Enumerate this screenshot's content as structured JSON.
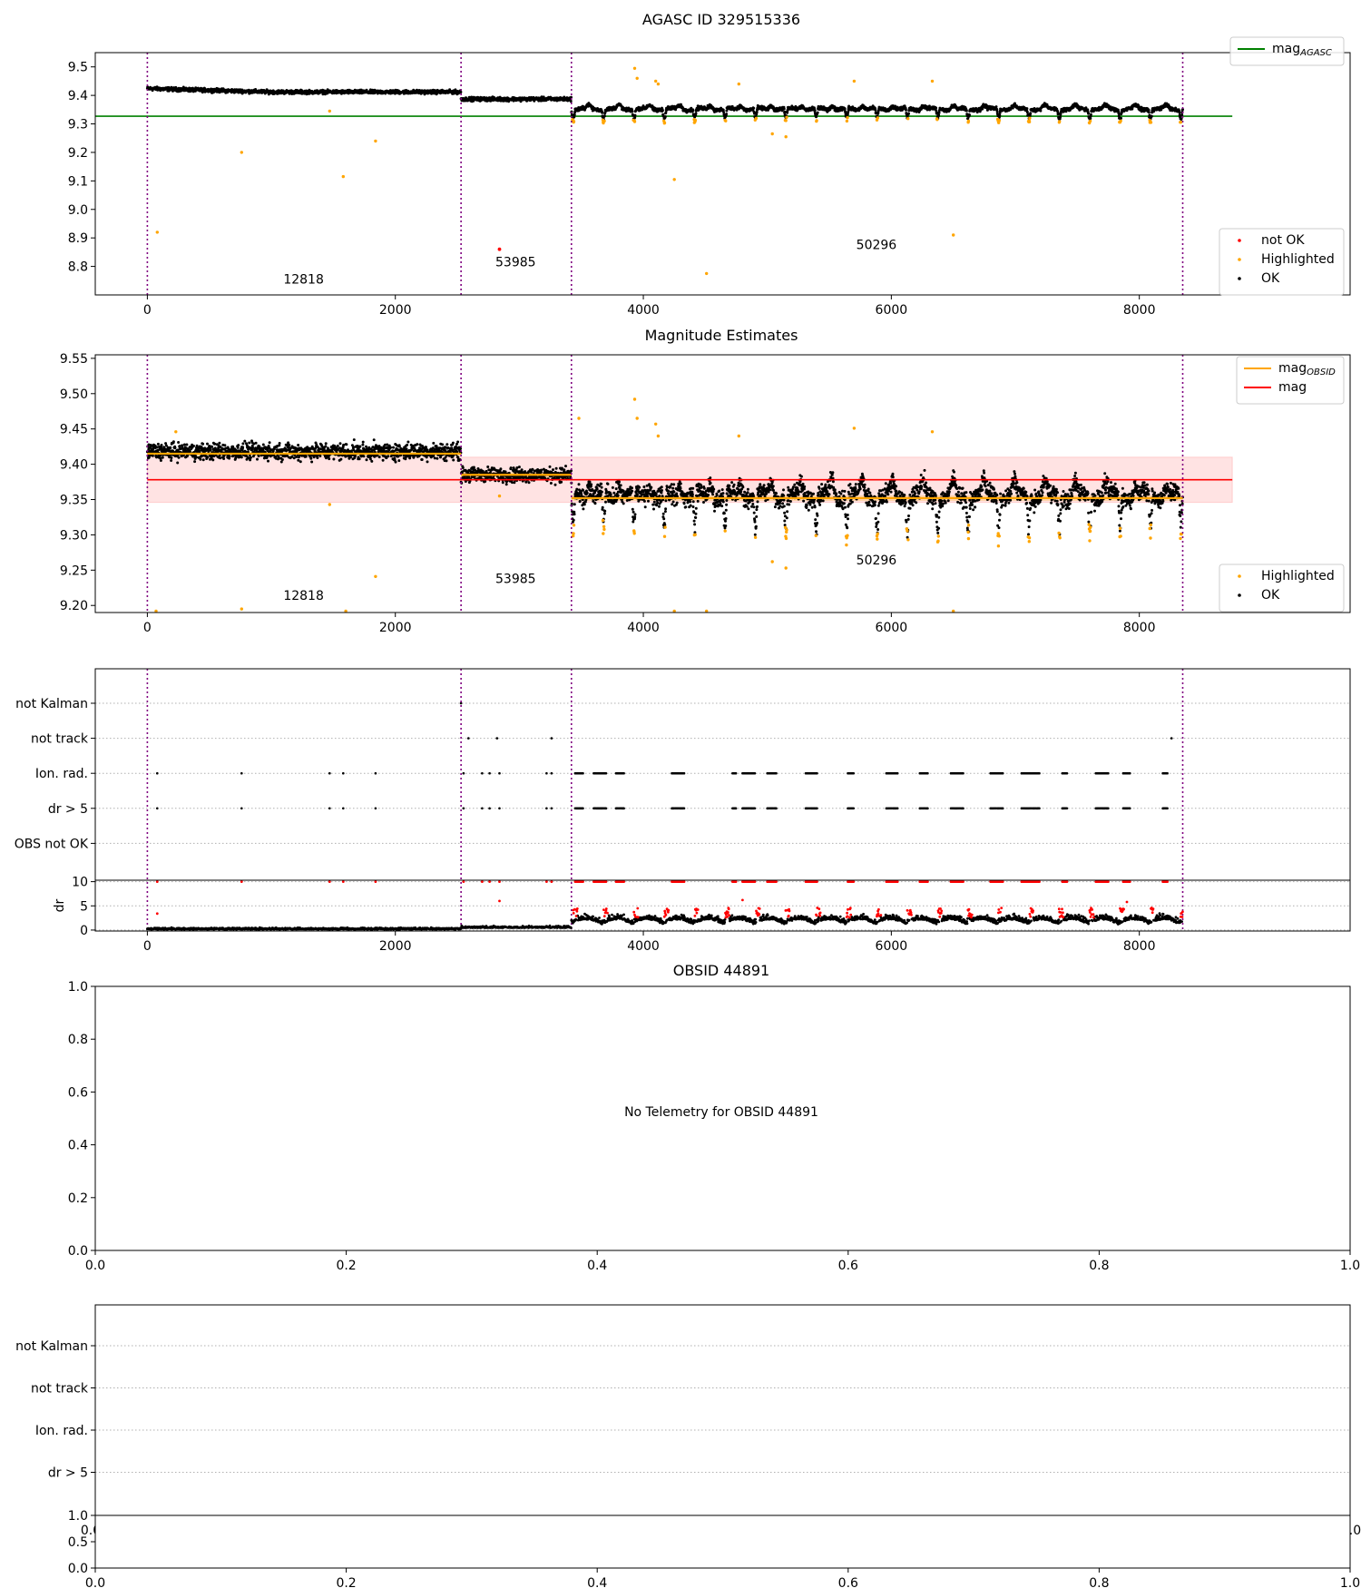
{
  "chart_data": [
    {
      "type": "scatter",
      "title": "AGASC ID 329515336",
      "xlim": [
        -420,
        9700
      ],
      "ylim": [
        8.7,
        9.55
      ],
      "xticks": [
        0,
        2000,
        4000,
        6000,
        8000
      ],
      "yticks": [
        8.8,
        8.9,
        9.0,
        9.1,
        9.2,
        9.3,
        9.4,
        9.5
      ],
      "vlines": [
        0,
        2530,
        3420,
        8350
      ],
      "segments": [
        {
          "obsid": "12818",
          "x_start": 0,
          "x_end": 2530,
          "label_pos": [
            1260,
            8.74
          ]
        },
        {
          "obsid": "53985",
          "x_start": 2530,
          "x_end": 3420,
          "label_pos": [
            2970,
            8.8
          ]
        },
        {
          "obsid": "50296",
          "x_start": 3420,
          "x_end": 8350,
          "label_pos": [
            5880,
            8.86
          ]
        }
      ],
      "reference_lines": [
        {
          "name": "mag_AGASC",
          "color": "#008000",
          "y": 9.327,
          "x_range": [
            -420,
            8750
          ]
        }
      ],
      "levels": [
        9.424,
        9.412,
        9.387,
        9.352
      ],
      "highlighted_points": [
        [
          80,
          8.92
        ],
        [
          760,
          9.2
        ],
        [
          1580,
          9.115
        ],
        [
          1840,
          9.24
        ],
        [
          1470,
          9.345
        ],
        [
          4250,
          9.105
        ],
        [
          4510,
          8.775
        ],
        [
          6500,
          8.91
        ],
        [
          3930,
          9.495
        ],
        [
          3950,
          9.46
        ],
        [
          4100,
          9.45
        ],
        [
          4120,
          9.44
        ],
        [
          4770,
          9.44
        ],
        [
          5040,
          9.265
        ],
        [
          5150,
          9.255
        ],
        [
          5700,
          9.45
        ],
        [
          6330,
          9.45
        ]
      ],
      "not_ok_points": [
        [
          2840,
          8.86
        ]
      ],
      "legends": [
        {
          "position": "upper right",
          "entries": [
            {
              "label": "mag",
              "sub": "AGASC",
              "color": "#008000",
              "marker": "line"
            }
          ]
        },
        {
          "position": "lower right",
          "entries": [
            {
              "label": "not OK",
              "color": "#ff0000",
              "marker": "dot"
            },
            {
              "label": "Highlighted",
              "color": "#ffa500",
              "marker": "dot"
            },
            {
              "label": "OK",
              "color": "#000000",
              "marker": "dot"
            }
          ]
        }
      ]
    },
    {
      "type": "scatter",
      "title": "Magnitude Estimates",
      "xlim": [
        -420,
        9700
      ],
      "ylim": [
        9.19,
        9.555
      ],
      "xticks": [
        0,
        2000,
        4000,
        6000,
        8000
      ],
      "yticks": [
        9.2,
        9.25,
        9.3,
        9.35,
        9.4,
        9.45,
        9.5,
        9.55
      ],
      "vlines": [
        0,
        2530,
        3420,
        8350
      ],
      "segments": [
        {
          "obsid": "12818",
          "label_pos": [
            1260,
            9.208
          ]
        },
        {
          "obsid": "53985",
          "label_pos": [
            2970,
            9.232
          ]
        },
        {
          "obsid": "50296",
          "label_pos": [
            5880,
            9.258
          ]
        }
      ],
      "mean_line": {
        "name": "mag",
        "color": "#ff0000",
        "y": 9.378,
        "band": [
          9.346,
          9.41
        ],
        "x_range": [
          0,
          8750
        ]
      },
      "obsid_levels": [
        {
          "x": [
            0,
            2530
          ],
          "y": 9.415
        },
        {
          "x": [
            2530,
            3420
          ],
          "y": 9.385
        },
        {
          "x": [
            3420,
            8350
          ],
          "y": 9.352
        }
      ],
      "highlighted_points": [
        [
          70,
          9.192
        ],
        [
          1600,
          9.192
        ],
        [
          4250,
          9.192
        ],
        [
          4510,
          9.192
        ],
        [
          6500,
          9.192
        ],
        [
          760,
          9.195
        ],
        [
          1840,
          9.241
        ],
        [
          1470,
          9.343
        ],
        [
          3930,
          9.492
        ],
        [
          3950,
          9.465
        ],
        [
          4100,
          9.457
        ],
        [
          4120,
          9.44
        ],
        [
          4770,
          9.44
        ],
        [
          5040,
          9.262
        ],
        [
          5150,
          9.253
        ],
        [
          5700,
          9.451
        ],
        [
          6330,
          9.446
        ],
        [
          3480,
          9.465
        ],
        [
          2840,
          9.355
        ],
        [
          230,
          9.446
        ]
      ],
      "legends": [
        {
          "position": "upper right",
          "entries": [
            {
              "label": "mag",
              "sub": "OBSID",
              "color": "#ffa500",
              "marker": "line"
            },
            {
              "label": "mag",
              "color": "#ff0000",
              "marker": "line"
            }
          ]
        },
        {
          "position": "lower right",
          "entries": [
            {
              "label": "Highlighted",
              "color": "#ffa500",
              "marker": "dot"
            },
            {
              "label": "OK",
              "color": "#000000",
              "marker": "dot"
            }
          ]
        }
      ]
    },
    {
      "type": "scatter",
      "title": "",
      "xlim": [
        -420,
        9700
      ],
      "xticks": [
        0,
        2000,
        4000,
        6000,
        8000
      ],
      "vlines": [
        0,
        2530,
        3420,
        8350
      ],
      "flag_rows": [
        "not Kalman",
        "not track",
        "Ion. rad.",
        "dr > 5",
        "OBS not OK"
      ],
      "flag_points": {
        "not Kalman": [
          2530
        ],
        "not track": [
          2590,
          2820,
          3260,
          8260
        ],
        "Ion. rad.": [
          80,
          760,
          1470,
          1580,
          1840,
          2550,
          2700,
          2760,
          2840,
          3220,
          3260
        ],
        "dr > 5": [
          80,
          760,
          1470,
          1580,
          1840,
          2550,
          2700,
          2760,
          2840,
          3220,
          3260
        ],
        "OBS not OK": []
      },
      "ion_clusters": [
        [
          3450,
          3520
        ],
        [
          3600,
          3700
        ],
        [
          3780,
          3850
        ],
        [
          4230,
          4330
        ],
        [
          4720,
          4750
        ],
        [
          4800,
          4900
        ],
        [
          5000,
          5080
        ],
        [
          5310,
          5400
        ],
        [
          5650,
          5700
        ],
        [
          5960,
          6050
        ],
        [
          6230,
          6300
        ],
        [
          6480,
          6580
        ],
        [
          6800,
          6900
        ],
        [
          7050,
          7200
        ],
        [
          7380,
          7420
        ],
        [
          7650,
          7750
        ],
        [
          7870,
          7930
        ],
        [
          8190,
          8230
        ]
      ],
      "dr_panel": {
        "ylabel": "dr",
        "ylim": [
          -0.2,
          10.3
        ],
        "yticks": [
          0,
          5,
          10
        ],
        "gridlines": [
          0,
          5,
          10
        ]
      },
      "dr_clipped": [
        80,
        760,
        1470,
        1580,
        1840,
        2550,
        2700,
        2760,
        2840,
        3220,
        3260
      ],
      "dr_red_extra": [
        [
          80,
          3.4
        ],
        [
          2840,
          6.0
        ],
        [
          4800,
          6.2
        ],
        [
          7900,
          5.8
        ]
      ]
    },
    {
      "type": "scatter",
      "title": "OBSID 44891",
      "annotation": "No Telemetry for OBSID 44891",
      "xlim": [
        0,
        1
      ],
      "ylim": [
        0,
        1
      ],
      "xticks": [
        0.0,
        0.2,
        0.4,
        0.6,
        0.8,
        1.0
      ],
      "yticks": [
        0.0,
        0.2,
        0.4,
        0.6,
        0.8,
        1.0
      ]
    },
    {
      "type": "scatter",
      "title": "",
      "flag_rows": [
        "not Kalman",
        "not track",
        "Ion. rad.",
        "dr > 5"
      ],
      "xlim": [
        0,
        1
      ],
      "xticks": [
        0.0,
        0.2,
        0.4,
        0.6,
        0.8,
        1.0
      ],
      "overlap_tick_labels": [
        "0.0",
        "1.0"
      ],
      "dr_panel": {
        "ylim": [
          0,
          1
        ],
        "yticks": [
          0.0,
          0.5,
          1.0
        ]
      }
    }
  ]
}
